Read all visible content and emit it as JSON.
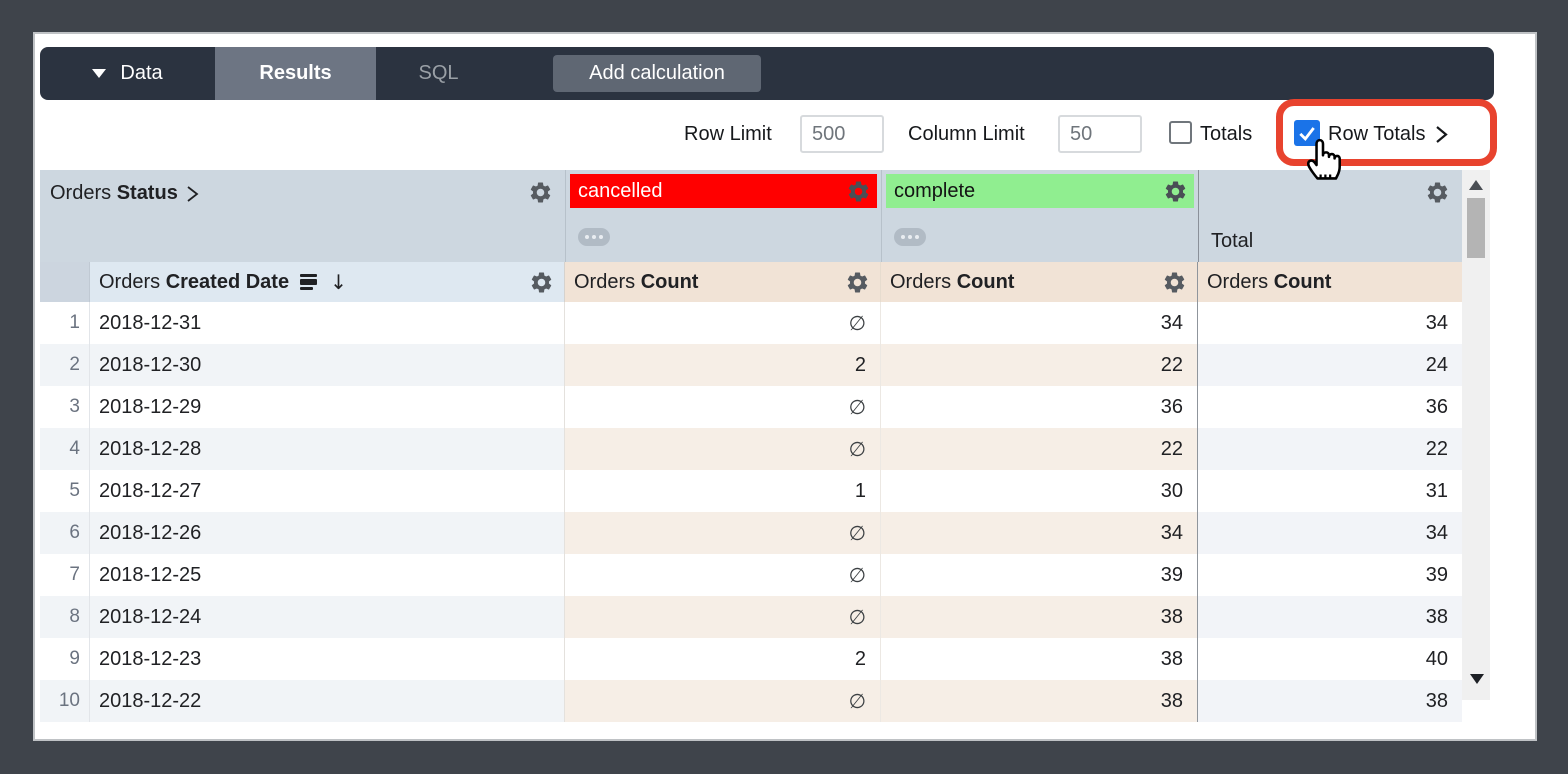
{
  "toolbar": {
    "data_menu_label": "Data",
    "tabs": [
      {
        "label": "Results"
      },
      {
        "label": "SQL"
      }
    ],
    "add_calculation_label": "Add calculation"
  },
  "controls": {
    "row_limit_label": "Row Limit",
    "row_limit_value": "500",
    "column_limit_label": "Column Limit",
    "column_limit_value": "50",
    "totals_label": "Totals",
    "totals_checked": false,
    "row_totals_label": "Row Totals",
    "row_totals_checked": true,
    "highlight_color": "#e8432e",
    "checkbox_blue": "#1a73e8"
  },
  "table": {
    "status_header": {
      "prefix": "Orders ",
      "bold": "Status"
    },
    "pivots": [
      {
        "label": "cancelled",
        "bg": "#ff0000",
        "fg": "#ffffff"
      },
      {
        "label": "complete",
        "bg": "#90ee90",
        "fg": "#141414"
      }
    ],
    "total_label": "Total",
    "date_header": {
      "prefix": "Orders ",
      "bold": "Created Date"
    },
    "count_header": {
      "prefix": "Orders ",
      "bold": "Count"
    },
    "null_symbol": "∅",
    "rows": [
      {
        "n": 1,
        "date": "2018-12-31",
        "cancelled": null,
        "complete": 34,
        "total": 34
      },
      {
        "n": 2,
        "date": "2018-12-30",
        "cancelled": 2,
        "complete": 22,
        "total": 24
      },
      {
        "n": 3,
        "date": "2018-12-29",
        "cancelled": null,
        "complete": 36,
        "total": 36
      },
      {
        "n": 4,
        "date": "2018-12-28",
        "cancelled": null,
        "complete": 22,
        "total": 22
      },
      {
        "n": 5,
        "date": "2018-12-27",
        "cancelled": 1,
        "complete": 30,
        "total": 31
      },
      {
        "n": 6,
        "date": "2018-12-26",
        "cancelled": null,
        "complete": 34,
        "total": 34
      },
      {
        "n": 7,
        "date": "2018-12-25",
        "cancelled": null,
        "complete": 39,
        "total": 39
      },
      {
        "n": 8,
        "date": "2018-12-24",
        "cancelled": null,
        "complete": 38,
        "total": 38
      },
      {
        "n": 9,
        "date": "2018-12-23",
        "cancelled": 2,
        "complete": 38,
        "total": 40
      },
      {
        "n": 10,
        "date": "2018-12-22",
        "cancelled": null,
        "complete": 38,
        "total": 38
      }
    ]
  }
}
